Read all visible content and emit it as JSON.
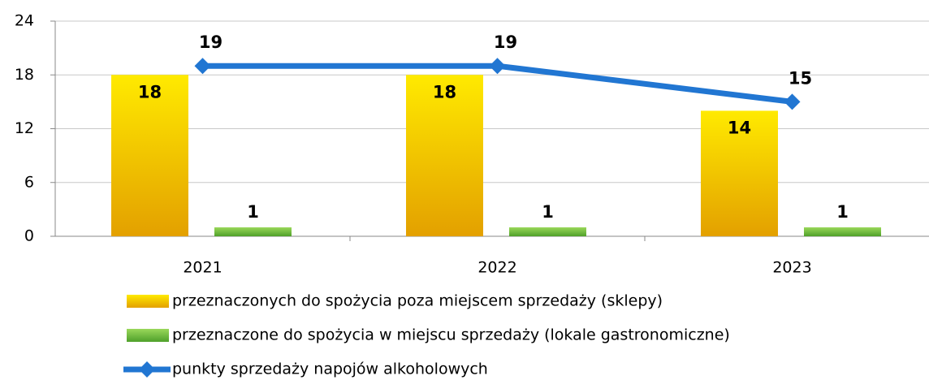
{
  "chart_data": {
    "type": "bar",
    "categories": [
      "2021",
      "2022",
      "2023"
    ],
    "series": [
      {
        "name": "przeznaczonych do spożycia poza miejscem sprzedaży (sklepy)",
        "type": "bar",
        "color": "#ffe600",
        "values": [
          18,
          18,
          14
        ]
      },
      {
        "name": "przeznaczone do spożycia w miejscu sprzedaży (lokale gastronomiczne)",
        "type": "bar",
        "color": "#7cc63a",
        "values": [
          1,
          1,
          1
        ]
      },
      {
        "name": "punkty sprzedaży napojów alkoholowych",
        "type": "line",
        "color": "#2176d2",
        "values": [
          19,
          19,
          15
        ]
      }
    ],
    "ylim": [
      0,
      24
    ],
    "yticks": [
      0,
      6,
      12,
      18,
      24
    ],
    "grid": true,
    "legend": "bottom"
  }
}
